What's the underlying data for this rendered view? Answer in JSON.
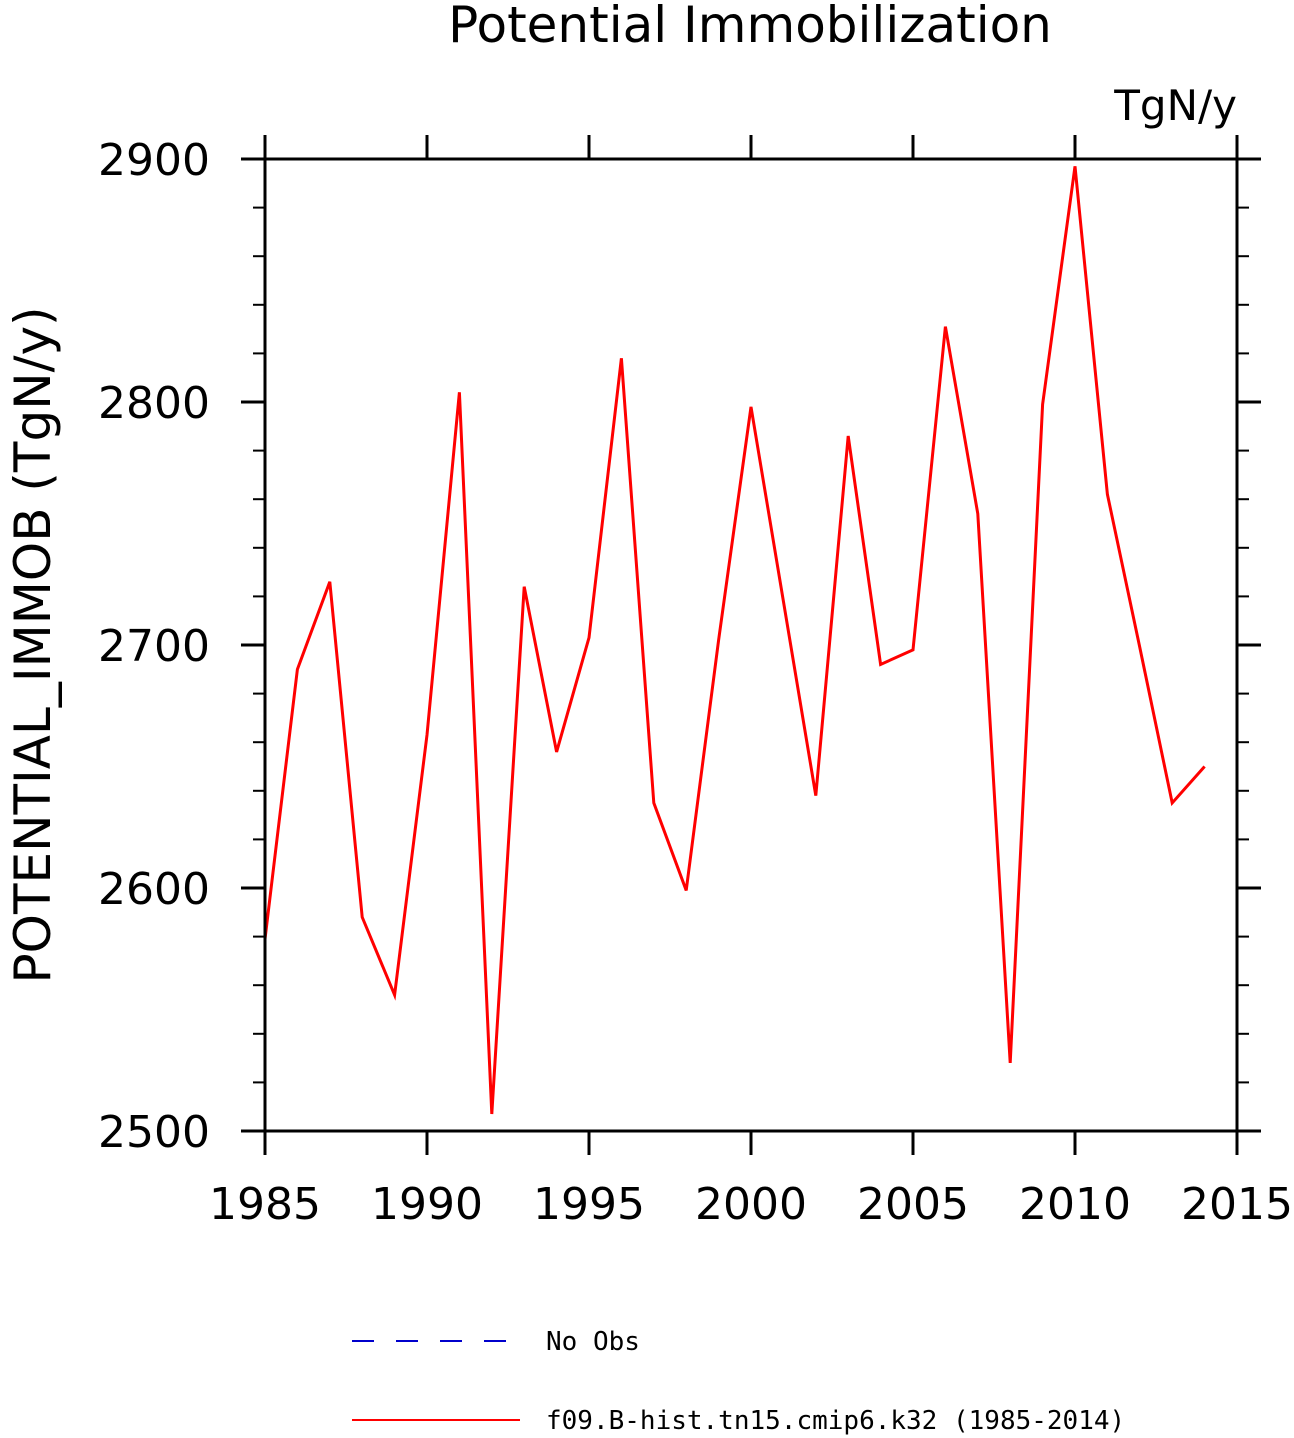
{
  "chart_data": {
    "type": "line",
    "title": "Potential Immobilization",
    "units_label": "TgN/y",
    "ylabel": "POTENTIAL_IMMOB   (TgN/y)",
    "xlabel": "",
    "xlim": [
      1985,
      2015
    ],
    "ylim": [
      2500,
      2900
    ],
    "x_ticks": [
      1985,
      1990,
      1995,
      2000,
      2005,
      2010,
      2015
    ],
    "x_tick_labels": [
      "1985",
      "1990",
      "1995",
      "2000",
      "2005",
      "2010",
      "2015"
    ],
    "y_ticks": [
      2500,
      2600,
      2700,
      2800,
      2900
    ],
    "y_tick_labels": [
      "2500",
      "2600",
      "2700",
      "2800",
      "2900"
    ],
    "series": [
      {
        "name": "f09.B-hist.tn15.cmip6.k32 (1985-2014)",
        "color": "#ff0000",
        "style": "solid",
        "x": [
          1985,
          1986,
          1987,
          1988,
          1989,
          1990,
          1991,
          1992,
          1993,
          1994,
          1995,
          1996,
          1997,
          1998,
          1999,
          2000,
          2001,
          2002,
          2003,
          2004,
          2005,
          2006,
          2007,
          2008,
          2009,
          2010,
          2011,
          2012,
          2013,
          2014
        ],
        "values": [
          2579,
          2690,
          2726,
          2588,
          2556,
          2663,
          2804,
          2507,
          2724,
          2656,
          2703,
          2818,
          2635,
          2599,
          2702,
          2798,
          2718,
          2638,
          2786,
          2692,
          2698,
          2831,
          2754,
          2528,
          2799,
          2897,
          2762,
          2699,
          2635,
          2650
        ]
      },
      {
        "name": "No Obs",
        "color": "#0000cc",
        "style": "dashed",
        "x": [],
        "values": []
      }
    ],
    "legend": {
      "placement": "bottom",
      "entries": [
        "No Obs",
        "f09.B-hist.tn15.cmip6.k32 (1985-2014)"
      ]
    },
    "grid": false
  }
}
